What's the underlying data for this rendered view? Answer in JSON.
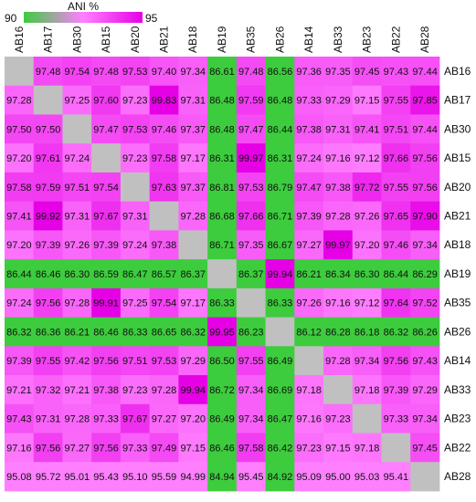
{
  "chart_data": {
    "type": "heatmap",
    "title": "",
    "legend": {
      "label": "ANI %",
      "min_label": "90",
      "max_label": "95",
      "min_value": 90,
      "max_value": 95,
      "gradient": [
        "#3dcc3d",
        "#ff80ff",
        "#e600e6"
      ]
    },
    "diagonal_color": "#c0c0c0",
    "low_color": "#3dcc3d",
    "column_labels": [
      "AB16",
      "AB17",
      "AB30",
      "AB15",
      "AB20",
      "AB21",
      "AB18",
      "AB19",
      "AB35",
      "AB26",
      "AB14",
      "AB33",
      "AB23",
      "AB22",
      "AB28"
    ],
    "row_labels": [
      "AB16",
      "AB17",
      "AB30",
      "AB15",
      "AB20",
      "AB21",
      "AB18",
      "AB19",
      "AB35",
      "AB26",
      "AB14",
      "AB33",
      "AB23",
      "AB22",
      "AB28"
    ],
    "values": [
      [
        null,
        "97.48",
        "97.54",
        "97.48",
        "97.53",
        "97.40",
        "97.34",
        "86.61",
        "97.48",
        "86.56",
        "97.36",
        "97.35",
        "97.45",
        "97.43",
        "97.44"
      ],
      [
        "97.28",
        null,
        "97.25",
        "97.60",
        "97.23",
        "99.83",
        "97.31",
        "86.48",
        "97.59",
        "86.48",
        "97.33",
        "97.29",
        "97.15",
        "97.55",
        "97.85"
      ],
      [
        "97.50",
        "97.50",
        null,
        "97.47",
        "97.53",
        "97.46",
        "97.37",
        "86.48",
        "97.47",
        "86.44",
        "97.38",
        "97.31",
        "97.41",
        "97.51",
        "97.44"
      ],
      [
        "97.20",
        "97.61",
        "97.24",
        null,
        "97.23",
        "97.58",
        "97.17",
        "86.31",
        "99.97",
        "86.31",
        "97.24",
        "97.16",
        "97.12",
        "97.66",
        "97.56"
      ],
      [
        "97.58",
        "97.59",
        "97.51",
        "97.54",
        null,
        "97.63",
        "97.37",
        "86.81",
        "97.53",
        "86.79",
        "97.47",
        "97.38",
        "97.72",
        "97.55",
        "97.56"
      ],
      [
        "97.41",
        "99.92",
        "97.31",
        "97.67",
        "97.31",
        null,
        "97.28",
        "86.68",
        "97.66",
        "86.71",
        "97.39",
        "97.28",
        "97.26",
        "97.65",
        "97.90"
      ],
      [
        "97.20",
        "97.39",
        "97.26",
        "97.39",
        "97.24",
        "97.38",
        null,
        "86.71",
        "97.35",
        "86.67",
        "97.27",
        "99.97",
        "97.20",
        "97.46",
        "97.34"
      ],
      [
        "86.44",
        "86.46",
        "86.30",
        "86.59",
        "86.47",
        "86.57",
        "86.37",
        null,
        "86.37",
        "99.94",
        "86.21",
        "86.34",
        "86.30",
        "86.44",
        "86.29"
      ],
      [
        "97.24",
        "97.56",
        "97.28",
        "99.91",
        "97.25",
        "97.54",
        "97.17",
        "86.33",
        null,
        "86.33",
        "97.26",
        "97.16",
        "97.12",
        "97.64",
        "97.52"
      ],
      [
        "86.32",
        "86.36",
        "86.21",
        "86.46",
        "86.33",
        "86.65",
        "86.32",
        "99.95",
        "86.23",
        null,
        "86.12",
        "86.28",
        "86.18",
        "86.32",
        "86.26"
      ],
      [
        "97.39",
        "97.55",
        "97.42",
        "97.56",
        "97.51",
        "97.53",
        "97.29",
        "86.50",
        "97.55",
        "86.49",
        null,
        "97.28",
        "97.34",
        "97.56",
        "97.43"
      ],
      [
        "97.21",
        "97.32",
        "97.21",
        "97.38",
        "97.23",
        "97.28",
        "99.94",
        "86.72",
        "97.34",
        "86.69",
        "97.18",
        null,
        "97.18",
        "97.39",
        "97.29"
      ],
      [
        "97.43",
        "97.31",
        "97.28",
        "97.33",
        "97.67",
        "97.27",
        "97.20",
        "86.49",
        "97.34",
        "86.47",
        "97.16",
        "97.23",
        null,
        "97.33",
        "97.34"
      ],
      [
        "97.16",
        "97.56",
        "97.27",
        "97.56",
        "97.33",
        "97.49",
        "97.15",
        "86.46",
        "97.58",
        "86.42",
        "97.23",
        "97.15",
        "97.18",
        null,
        "97.45"
      ],
      [
        "95.08",
        "95.72",
        "95.01",
        "95.43",
        "95.10",
        "95.59",
        "94.99",
        "84.94",
        "95.45",
        "84.92",
        "95.09",
        "95.00",
        "95.03",
        "95.41",
        null
      ]
    ]
  }
}
